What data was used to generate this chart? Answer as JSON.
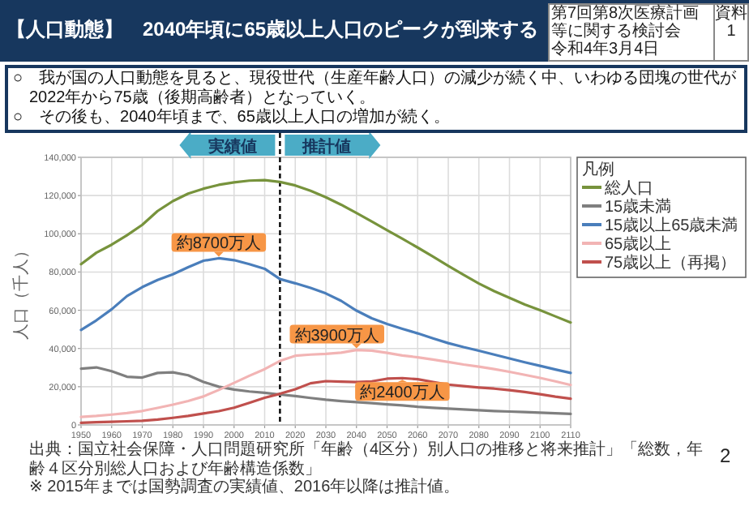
{
  "chart_data": {
    "type": "line",
    "title": "【人口動態】　2040年頃に65歳以上人口のピークが到来する",
    "ylabel": "人口（千人）",
    "legend_title": "凡例",
    "x": [
      1950,
      1955,
      1960,
      1965,
      1970,
      1975,
      1980,
      1985,
      1990,
      1995,
      2000,
      2005,
      2010,
      2015,
      2020,
      2025,
      2030,
      2035,
      2040,
      2045,
      2050,
      2055,
      2060,
      2065,
      2070,
      2075,
      2080,
      2085,
      2090,
      2095,
      2100,
      2105,
      2110
    ],
    "series": [
      {
        "name": "総人口",
        "color": "#77933c",
        "values": [
          84100,
          90100,
          94300,
          99200,
          104700,
          111900,
          117100,
          121000,
          123600,
          125600,
          126900,
          127800,
          128100,
          127100,
          125300,
          122500,
          119100,
          115200,
          110900,
          106400,
          101900,
          97400,
          92800,
          88100,
          83200,
          78500,
          74000,
          70000,
          66500,
          63000,
          60000,
          56800,
          53600
        ]
      },
      {
        "name": "15歳未満",
        "color": "#7f7f7f",
        "values": [
          29400,
          30100,
          28100,
          25200,
          24800,
          27200,
          27500,
          26000,
          22500,
          20000,
          18500,
          17500,
          16800,
          15900,
          15100,
          14100,
          13200,
          12500,
          11900,
          11400,
          10800,
          10200,
          9500,
          9000,
          8500,
          8100,
          7700,
          7300,
          7000,
          6700,
          6400,
          6100,
          5800
        ]
      },
      {
        "name": "15歳以上65歳未満",
        "color": "#4a7ebb",
        "values": [
          49700,
          54700,
          60500,
          67400,
          72100,
          75800,
          78800,
          82500,
          85900,
          87200,
          86200,
          84100,
          81700,
          76300,
          74100,
          71700,
          68800,
          64900,
          59800,
          55800,
          52800,
          50300,
          47900,
          45300,
          42800,
          40700,
          38800,
          36800,
          34800,
          32800,
          30900,
          29000,
          27200
        ]
      },
      {
        "name": "65歳以上",
        "color": "#f2b4b4",
        "values": [
          4200,
          4700,
          5400,
          6200,
          7300,
          8900,
          10600,
          12500,
          14900,
          18300,
          22000,
          25700,
          29200,
          33500,
          36200,
          36800,
          37200,
          37800,
          39200,
          38900,
          37700,
          36300,
          35400,
          34200,
          32900,
          31600,
          30500,
          29200,
          27800,
          26200,
          24600,
          22800,
          20900
        ]
      },
      {
        "name": "75歳以上（再掲）",
        "color": "#c0504d",
        "values": [
          1100,
          1400,
          1600,
          1900,
          2200,
          2800,
          3700,
          4700,
          6000,
          7200,
          9000,
          11600,
          14200,
          16300,
          18700,
          21800,
          22900,
          22600,
          22400,
          22800,
          24200,
          24500,
          23900,
          22500,
          21100,
          20300,
          19600,
          19000,
          18200,
          17200,
          16100,
          14800,
          13700
        ]
      }
    ],
    "xlim": [
      1950,
      2110
    ],
    "ylim": [
      0,
      140000
    ],
    "xticks": [
      1950,
      1960,
      1970,
      1980,
      1990,
      2000,
      2010,
      2020,
      2030,
      2040,
      2050,
      2060,
      2070,
      2080,
      2090,
      2100,
      2110
    ],
    "yticks": [
      0,
      {
        "value": 20000,
        "label": "20,000"
      },
      {
        "value": 40000,
        "label": "40,000"
      },
      {
        "value": 60000,
        "label": "60,000"
      },
      {
        "value": 80000,
        "label": "80,000"
      },
      {
        "value": 100000,
        "label": "100,000"
      },
      {
        "value": 120000,
        "label": "120,000"
      },
      {
        "value": 140000,
        "label": "140,000"
      }
    ],
    "grid": true,
    "legend": "top right",
    "ref_lines": [
      {
        "axis": "x",
        "value": 2015,
        "color": "#000000",
        "line_style": "dashed"
      }
    ],
    "annotations": [
      "第7回第8次医療計画等に関する検討会",
      "令和4年3月4日",
      "資料1",
      "○　我が国の人口動態を見ると、現役世代（生産年齢人口）の減少が続く中、いわゆる団塊の世代が2022年から75歳（後期高齢者）となっていく。",
      "○　その後も、2040年頃まで、65歳以上人口の増加が続く。",
      "実績値",
      "推計値",
      {
        "text": "約8700万人",
        "x": 1995,
        "y": 87200
      },
      {
        "text": "約3900万人",
        "x": 2040,
        "y": 39200
      },
      {
        "text": "約2400万人",
        "x": 2055,
        "y": 24500
      },
      "出典：国立社会保障・人口問題研究所「年齢（4区分）別人口の推移と将来推計」「総数，年齢４区分別総人口および年齢構造係数」",
      "※ 2015年までは国勢調査の実績値、2016年以降は推計値。",
      "2"
    ]
  }
}
